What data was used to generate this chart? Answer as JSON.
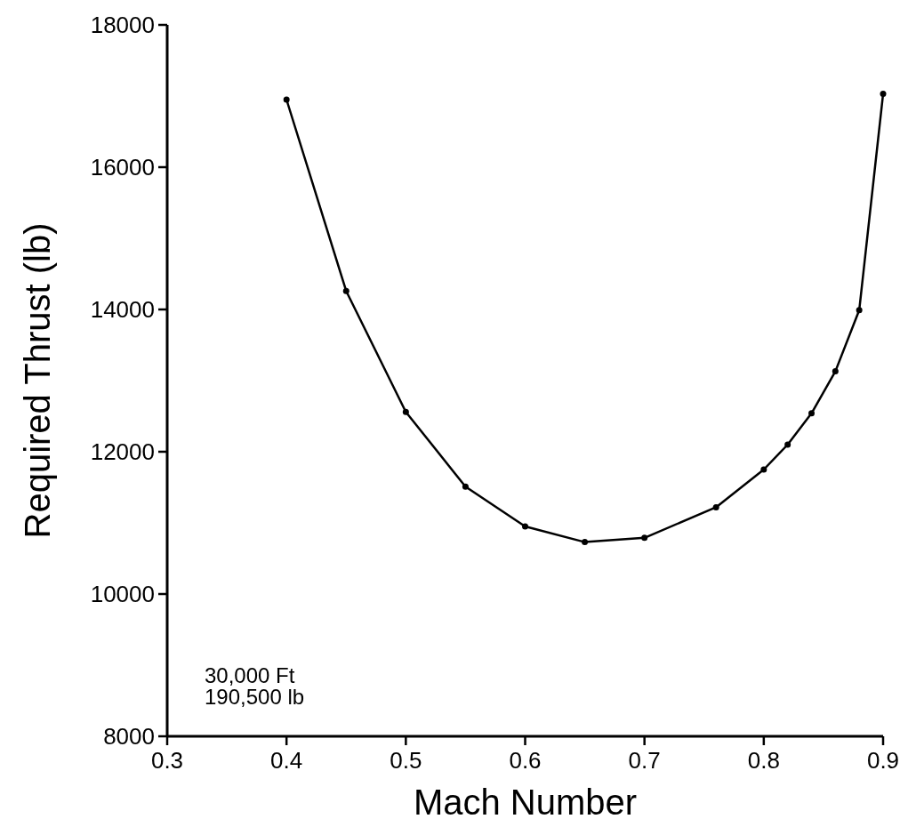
{
  "chart_data": {
    "type": "line",
    "xlabel": "Mach Number",
    "ylabel": "Required Thrust (lb)",
    "x": [
      0.4,
      0.45,
      0.5,
      0.55,
      0.6,
      0.65,
      0.7,
      0.76,
      0.8,
      0.82,
      0.84,
      0.86,
      0.88,
      0.9
    ],
    "series": [
      {
        "color": "#000000",
        "values": [
          16950,
          14260,
          12560,
          11510,
          10950,
          10730,
          10790,
          11220,
          11750,
          12100,
          12540,
          13130,
          13990,
          17030
        ]
      }
    ],
    "xlim": [
      0.3,
      0.9
    ],
    "xticks": [
      0.3,
      0.4,
      0.5,
      0.6,
      0.7,
      0.8,
      0.9
    ],
    "ylim": [
      8000,
      18000
    ],
    "yticks": [
      8000,
      10000,
      12000,
      14000,
      16000,
      18000
    ],
    "marker": "circle",
    "line_style": "solid",
    "annotations": [
      "30,000 Ft",
      "190,500 lb"
    ]
  }
}
